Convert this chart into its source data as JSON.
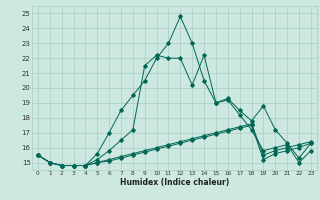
{
  "title": "",
  "xlabel": "Humidex (Indice chaleur)",
  "ylabel": "",
  "bg_color": "#cce8e0",
  "grid_color": "#aaccc4",
  "line_color": "#006655",
  "xlim": [
    -0.5,
    23.5
  ],
  "ylim": [
    14.5,
    25.5
  ],
  "xticks": [
    0,
    1,
    2,
    3,
    4,
    5,
    6,
    7,
    8,
    9,
    10,
    11,
    12,
    13,
    14,
    15,
    16,
    17,
    18,
    19,
    20,
    21,
    22,
    23
  ],
  "yticks": [
    15,
    16,
    17,
    18,
    19,
    20,
    21,
    22,
    23,
    24,
    25
  ],
  "series1_x": [
    0,
    1,
    2,
    3,
    4,
    5,
    6,
    7,
    8,
    9,
    10,
    11,
    12,
    13,
    14,
    15,
    16,
    17,
    18,
    19,
    20,
    21,
    22,
    23
  ],
  "series1_y": [
    15.5,
    15.0,
    14.8,
    14.8,
    14.8,
    15.6,
    17.0,
    18.5,
    19.5,
    20.5,
    22.0,
    23.0,
    24.8,
    23.0,
    20.5,
    19.0,
    19.3,
    18.5,
    17.8,
    18.8,
    17.2,
    16.3,
    15.3,
    16.3
  ],
  "series2_x": [
    0,
    1,
    2,
    3,
    4,
    5,
    6,
    7,
    8,
    9,
    10,
    11,
    12,
    13,
    14,
    15,
    16,
    17,
    18,
    19,
    20,
    21,
    22,
    23
  ],
  "series2_y": [
    15.5,
    15.0,
    14.8,
    14.8,
    14.8,
    15.2,
    15.8,
    16.5,
    17.2,
    21.5,
    22.2,
    22.0,
    22.0,
    20.2,
    22.2,
    19.0,
    19.2,
    18.2,
    17.2,
    15.8,
    16.0,
    16.2,
    15.0,
    15.8
  ],
  "series3_x": [
    0,
    1,
    2,
    3,
    4,
    5,
    6,
    7,
    8,
    9,
    10,
    11,
    12,
    13,
    14,
    15,
    16,
    17,
    18,
    19,
    20,
    21,
    22,
    23
  ],
  "series3_y": [
    15.5,
    15.0,
    14.8,
    14.8,
    14.8,
    15.0,
    15.2,
    15.4,
    15.6,
    15.8,
    16.0,
    16.2,
    16.4,
    16.6,
    16.8,
    17.0,
    17.2,
    17.4,
    17.6,
    15.5,
    15.8,
    16.0,
    16.2,
    16.4
  ],
  "series4_x": [
    0,
    1,
    2,
    3,
    4,
    5,
    6,
    7,
    8,
    9,
    10,
    11,
    12,
    13,
    14,
    15,
    16,
    17,
    18,
    19,
    20,
    21,
    22,
    23
  ],
  "series4_y": [
    15.5,
    15.0,
    14.8,
    14.8,
    14.8,
    15.0,
    15.1,
    15.3,
    15.5,
    15.7,
    15.9,
    16.1,
    16.3,
    16.5,
    16.7,
    16.9,
    17.1,
    17.3,
    17.5,
    15.2,
    15.6,
    15.8,
    16.0,
    16.3
  ]
}
